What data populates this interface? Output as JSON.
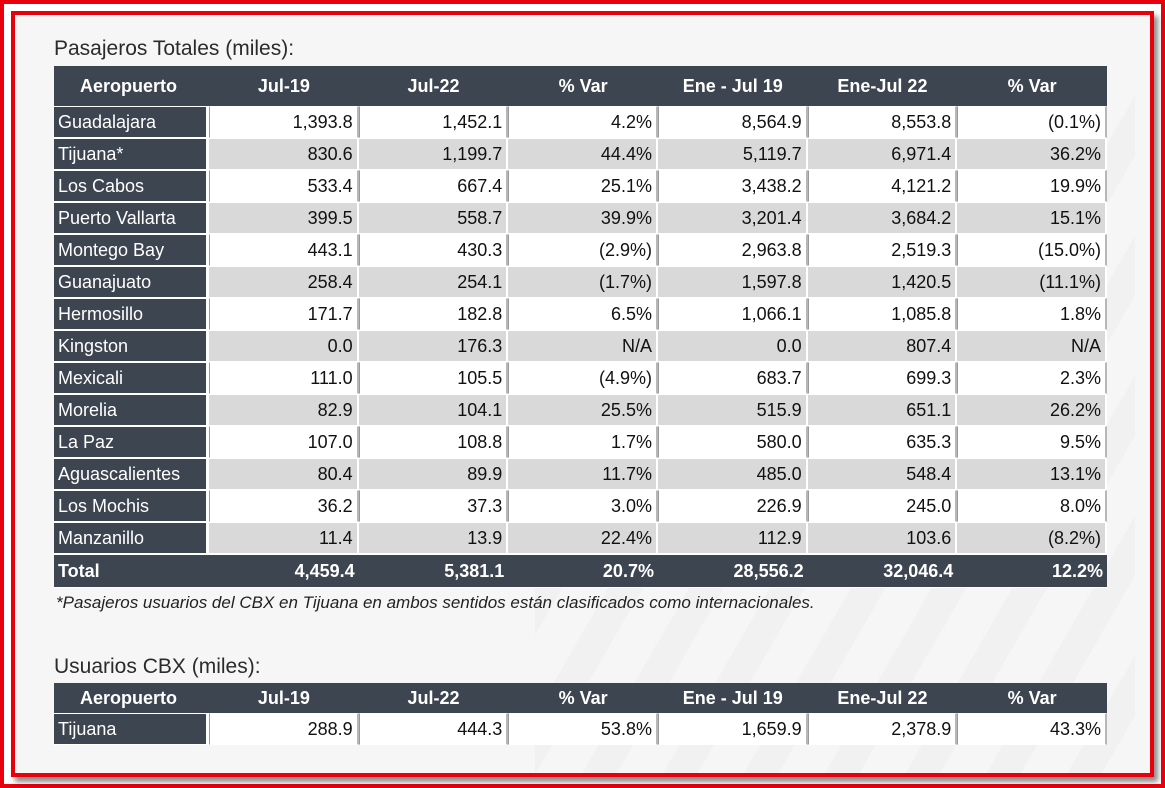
{
  "pasajeros": {
    "title": "Pasajeros Totales (miles):",
    "headers": [
      "Aeropuerto",
      "Jul-19",
      "Jul-22",
      "% Var",
      "Ene - Jul 19",
      "Ene-Jul 22",
      "% Var"
    ],
    "rows": [
      [
        "Guadalajara",
        "1,393.8",
        "1,452.1",
        "4.2%",
        "8,564.9",
        "8,553.8",
        "(0.1%)"
      ],
      [
        "Tijuana*",
        "830.6",
        "1,199.7",
        "44.4%",
        "5,119.7",
        "6,971.4",
        "36.2%"
      ],
      [
        "Los Cabos",
        "533.4",
        "667.4",
        "25.1%",
        "3,438.2",
        "4,121.2",
        "19.9%"
      ],
      [
        "Puerto Vallarta",
        "399.5",
        "558.7",
        "39.9%",
        "3,201.4",
        "3,684.2",
        "15.1%"
      ],
      [
        "Montego Bay",
        "443.1",
        "430.3",
        "(2.9%)",
        "2,963.8",
        "2,519.3",
        "(15.0%)"
      ],
      [
        "Guanajuato",
        "258.4",
        "254.1",
        "(1.7%)",
        "1,597.8",
        "1,420.5",
        "(11.1%)"
      ],
      [
        "Hermosillo",
        "171.7",
        "182.8",
        "6.5%",
        "1,066.1",
        "1,085.8",
        "1.8%"
      ],
      [
        "Kingston",
        "0.0",
        "176.3",
        "N/A",
        "0.0",
        "807.4",
        "N/A"
      ],
      [
        "Mexicali",
        "111.0",
        "105.5",
        "(4.9%)",
        "683.7",
        "699.3",
        "2.3%"
      ],
      [
        "Morelia",
        "82.9",
        "104.1",
        "25.5%",
        "515.9",
        "651.1",
        "26.2%"
      ],
      [
        "La Paz",
        "107.0",
        "108.8",
        "1.7%",
        "580.0",
        "635.3",
        "9.5%"
      ],
      [
        "Aguascalientes",
        "80.4",
        "89.9",
        "11.7%",
        "485.0",
        "548.4",
        "13.1%"
      ],
      [
        "Los Mochis",
        "36.2",
        "37.3",
        "3.0%",
        "226.9",
        "245.0",
        "8.0%"
      ],
      [
        "Manzanillo",
        "11.4",
        "13.9",
        "22.4%",
        "112.9",
        "103.6",
        "(8.2%)"
      ]
    ],
    "total": [
      "Total",
      "4,459.4",
      "5,381.1",
      "20.7%",
      "28,556.2",
      "32,046.4",
      "12.2%"
    ],
    "footnote": "*Pasajeros usuarios del CBX en Tijuana en ambos sentidos están clasificados como internacionales."
  },
  "cbx": {
    "title": "Usuarios CBX (miles):",
    "headers": [
      "Aeropuerto",
      "Jul-19",
      "Jul-22",
      "% Var",
      "Ene - Jul 19",
      "Ene-Jul 22",
      "% Var"
    ],
    "rows": [
      [
        "Tijuana",
        "288.9",
        "444.3",
        "53.8%",
        "1,659.9",
        "2,378.9",
        "43.3%"
      ]
    ]
  },
  "colors": {
    "frame_border": "#e8000d",
    "header_bg": "#3d4550",
    "stripe": "#d9d9d9"
  }
}
